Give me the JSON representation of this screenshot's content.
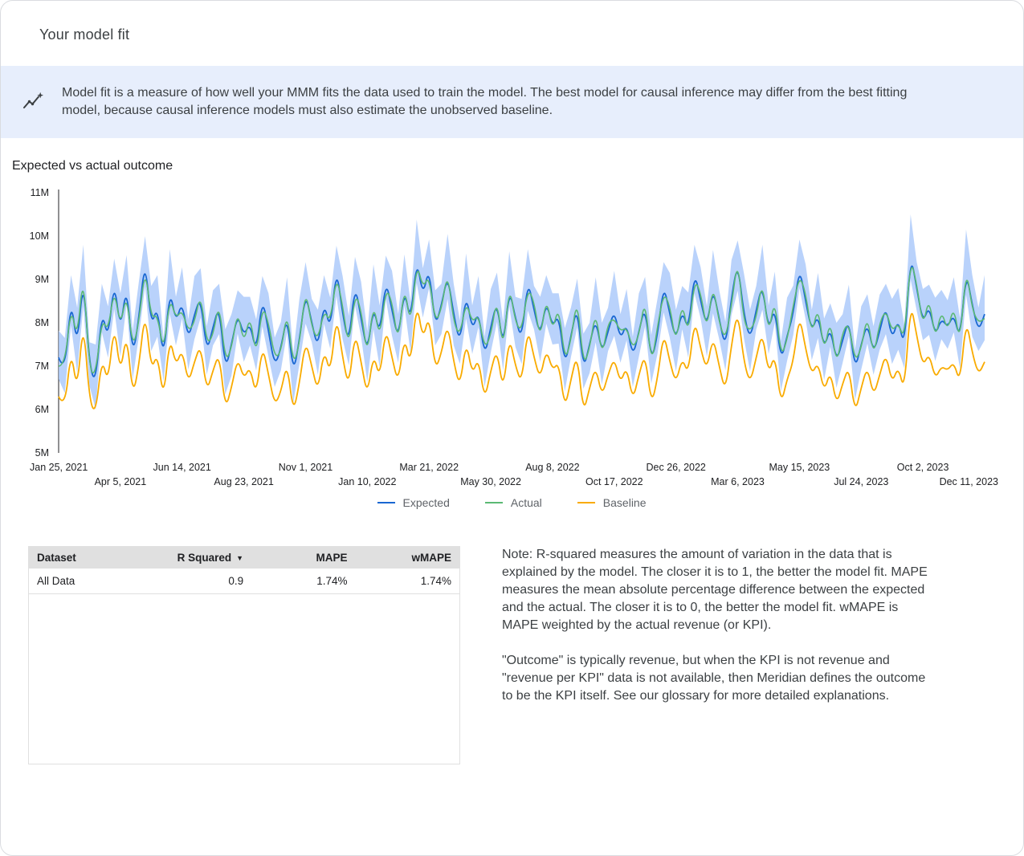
{
  "page": {
    "title": "Your model fit"
  },
  "banner": {
    "icon": "insights-icon",
    "text": "Model fit is a measure of how well your MMM fits the data used to train the model. The best model for causal inference may differ from the best fitting model, because causal inference models must also estimate the unobserved baseline."
  },
  "section": {
    "title": "Expected vs actual outcome"
  },
  "chart_data": {
    "type": "line",
    "title": "Expected vs actual outcome",
    "ylim": [
      5,
      11
    ],
    "y_ticks": [
      "5M",
      "6M",
      "7M",
      "8M",
      "9M",
      "10M",
      "11M"
    ],
    "x_ticks": [
      "Jan 25, 2021",
      "Apr 5, 2021",
      "Jun 14, 2021",
      "Aug 23, 2021",
      "Nov 1, 2021",
      "Jan 10, 2022",
      "Mar 21, 2022",
      "May 30, 2022",
      "Aug 8, 2022",
      "Oct 17, 2022",
      "Dec 26, 2022",
      "Mar 6, 2023",
      "May 15, 2023",
      "Jul 24, 2023",
      "Oct 2, 2023",
      "Dec 11, 2023"
    ],
    "x_tick_every": 10,
    "x_unit": "week",
    "y_unit": "outcome (M)",
    "grid": false,
    "legend_position": "bottom",
    "series": [
      {
        "name": "Expected",
        "color": "#1967d2",
        "values": [
          7.2,
          6.8,
          8.6,
          7.4,
          9.1,
          7.0,
          6.6,
          8.3,
          7.6,
          9.0,
          7.8,
          8.9,
          7.2,
          8.1,
          9.5,
          7.9,
          8.4,
          7.1,
          8.8,
          8.0,
          8.5,
          7.6,
          8.2,
          8.6,
          7.3,
          7.9,
          8.4,
          6.9,
          7.5,
          8.2,
          7.7,
          8.0,
          7.3,
          8.6,
          7.8,
          7.0,
          7.4,
          8.2,
          6.8,
          7.6,
          8.7,
          8.0,
          7.4,
          8.5,
          7.8,
          9.3,
          8.2,
          7.5,
          8.9,
          8.1,
          7.3,
          8.4,
          7.7,
          9.0,
          8.3,
          7.6,
          8.8,
          8.0,
          9.5,
          8.6,
          9.3,
          7.9,
          8.4,
          9.1,
          8.2,
          7.5,
          8.7,
          7.8,
          8.3,
          7.2,
          7.9,
          8.5,
          7.4,
          8.8,
          8.1,
          7.6,
          9.0,
          8.3,
          7.7,
          8.5,
          7.9,
          8.2,
          7.0,
          7.7,
          8.4,
          6.9,
          7.5,
          8.1,
          7.3,
          7.8,
          8.3,
          7.6,
          8.0,
          7.2,
          7.8,
          8.4,
          7.1,
          7.7,
          8.9,
          8.2,
          7.6,
          8.3,
          7.8,
          9.2,
          8.5,
          7.9,
          8.8,
          8.1,
          7.4,
          8.6,
          9.4,
          8.2,
          7.6,
          8.3,
          8.9,
          7.8,
          8.4,
          7.1,
          7.7,
          8.2,
          9.3,
          8.5,
          7.8,
          8.2,
          7.4,
          7.9,
          7.1,
          7.6,
          8.1,
          6.9,
          7.5,
          8.0,
          7.3,
          7.8,
          8.4,
          7.6,
          8.1,
          7.4,
          9.6,
          8.8,
          8.0,
          8.4,
          7.7,
          8.1,
          7.9,
          8.2,
          7.6,
          9.2,
          8.4,
          7.8,
          8.2
        ]
      },
      {
        "name": "Actual",
        "color": "#5bb974",
        "values": [
          7.0,
          7.0,
          8.4,
          7.6,
          9.2,
          6.9,
          6.8,
          8.1,
          7.8,
          8.8,
          7.9,
          8.7,
          7.4,
          8.0,
          9.3,
          8.1,
          8.2,
          7.3,
          8.6,
          8.1,
          8.3,
          7.8,
          8.0,
          8.7,
          7.5,
          7.7,
          8.5,
          7.1,
          7.4,
          8.3,
          7.5,
          8.2,
          7.2,
          8.4,
          8.0,
          7.2,
          7.3,
          8.3,
          7.0,
          7.5,
          8.8,
          7.9,
          7.6,
          8.3,
          8.0,
          9.1,
          8.4,
          7.4,
          8.7,
          8.3,
          7.2,
          8.5,
          7.6,
          8.8,
          8.5,
          7.5,
          8.9,
          7.9,
          9.4,
          8.8,
          9.1,
          8.0,
          8.3,
          9.2,
          8.0,
          7.7,
          8.5,
          8.0,
          8.2,
          7.4,
          7.7,
          8.6,
          7.3,
          8.9,
          8.0,
          7.8,
          8.8,
          8.5,
          7.6,
          8.6,
          7.8,
          8.4,
          7.1,
          7.6,
          8.6,
          7.0,
          7.4,
          8.3,
          7.2,
          8.0,
          8.1,
          7.8,
          7.9,
          7.4,
          7.7,
          8.6,
          7.0,
          7.9,
          8.7,
          8.4,
          7.5,
          8.5,
          7.7,
          9.0,
          8.7,
          7.8,
          8.9,
          8.0,
          7.6,
          8.4,
          9.5,
          8.0,
          7.8,
          8.1,
          9.0,
          7.7,
          8.6,
          7.2,
          7.6,
          8.4,
          9.1,
          8.7,
          7.7,
          8.4,
          7.3,
          8.1,
          7.0,
          7.8,
          8.0,
          7.1,
          7.4,
          8.2,
          7.2,
          8.0,
          8.3,
          7.8,
          8.0,
          7.6,
          9.5,
          8.9,
          7.9,
          8.6,
          7.6,
          8.3,
          7.8,
          8.4,
          7.5,
          9.3,
          8.3,
          8.0,
          8.1
        ]
      },
      {
        "name": "Baseline",
        "color": "#f9ab00",
        "values": [
          6.3,
          6.0,
          7.4,
          6.4,
          8.1,
          6.2,
          5.9,
          7.2,
          6.6,
          8.0,
          6.8,
          7.8,
          6.3,
          7.0,
          8.3,
          6.9,
          7.3,
          6.2,
          7.7,
          7.0,
          7.4,
          6.6,
          7.1,
          7.5,
          6.4,
          6.9,
          7.3,
          6.0,
          6.5,
          7.2,
          6.7,
          7.0,
          6.3,
          7.5,
          6.8,
          6.1,
          6.4,
          7.1,
          5.9,
          6.6,
          7.6,
          7.0,
          6.4,
          7.4,
          6.8,
          8.2,
          7.2,
          6.5,
          7.8,
          7.1,
          6.3,
          7.3,
          6.7,
          7.9,
          7.2,
          6.6,
          7.7,
          7.0,
          8.5,
          7.6,
          8.2,
          6.9,
          7.3,
          8.0,
          7.1,
          6.5,
          7.6,
          6.8,
          7.2,
          6.2,
          6.9,
          7.4,
          6.4,
          7.7,
          7.0,
          6.6,
          7.9,
          7.2,
          6.7,
          7.4,
          6.9,
          7.1,
          6.0,
          6.7,
          7.3,
          5.9,
          6.5,
          7.0,
          6.3,
          6.8,
          7.2,
          6.6,
          7.0,
          6.2,
          6.8,
          7.3,
          6.1,
          6.7,
          7.8,
          7.1,
          6.6,
          7.2,
          6.8,
          8.1,
          7.4,
          6.9,
          7.7,
          7.0,
          6.4,
          7.5,
          8.3,
          7.1,
          6.6,
          7.2,
          7.8,
          6.8,
          7.3,
          6.1,
          6.7,
          7.1,
          8.2,
          7.4,
          6.8,
          7.1,
          6.4,
          6.9,
          6.1,
          6.6,
          7.0,
          5.9,
          6.5,
          7.0,
          6.3,
          6.8,
          7.3,
          6.6,
          7.0,
          6.4,
          8.5,
          7.7,
          7.0,
          7.3,
          6.7,
          7.0,
          6.9,
          7.1,
          6.6,
          8.1,
          7.3,
          6.8,
          7.1
        ]
      }
    ],
    "band": {
      "name": "Expected credible interval",
      "base_series": "Expected",
      "color": "#a8c7fa",
      "upper_margin_cycle": [
        0.62,
        0.85,
        0.5,
        0.95,
        0.7,
        0.55,
        0.9,
        0.6,
        0.78,
        0.48,
        0.88,
        0.66
      ],
      "lower_margin_cycle": [
        0.5,
        0.42,
        0.66,
        0.55,
        0.72,
        0.45,
        0.6,
        0.52,
        0.4,
        0.68,
        0.58,
        0.48
      ]
    }
  },
  "table": {
    "headers": [
      "Dataset",
      "R Squared",
      "MAPE",
      "wMAPE"
    ],
    "sort_icon": "▼",
    "rows": [
      [
        "All Data",
        "0.9",
        "1.74%",
        "1.74%"
      ]
    ]
  },
  "note": {
    "paragraph1": "Note: R-squared measures the amount of variation in the data that is explained by the model. The closer it is to 1, the better the model fit. MAPE measures the mean absolute percentage difference between the expected and the actual. The closer it is to 0, the better the model fit. wMAPE is MAPE weighted by the actual revenue (or KPI).",
    "paragraph2": "\"Outcome\" is typically revenue, but when the KPI is not revenue and \"revenue per KPI\" data is not available, then Meridian defines the outcome to be the KPI itself. See our glossary for more detailed explanations."
  }
}
